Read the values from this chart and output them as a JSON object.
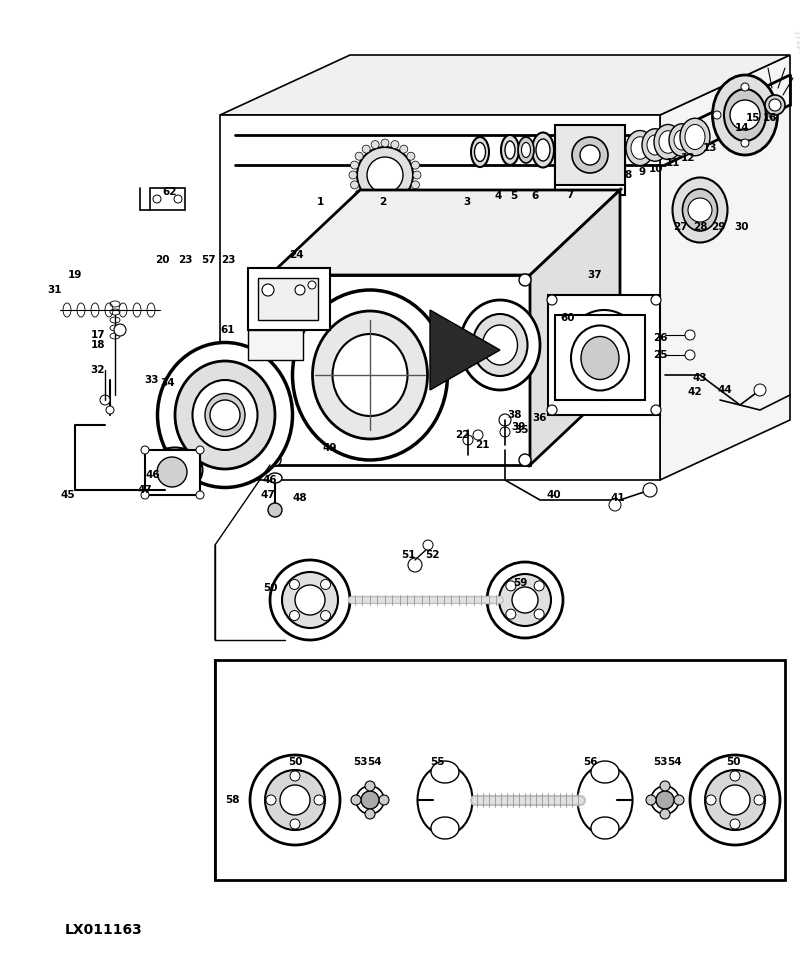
{
  "background_color": "#ffffff",
  "label_id": "LX011163",
  "fig_width": 8.0,
  "fig_height": 9.64,
  "dpi": 100
}
